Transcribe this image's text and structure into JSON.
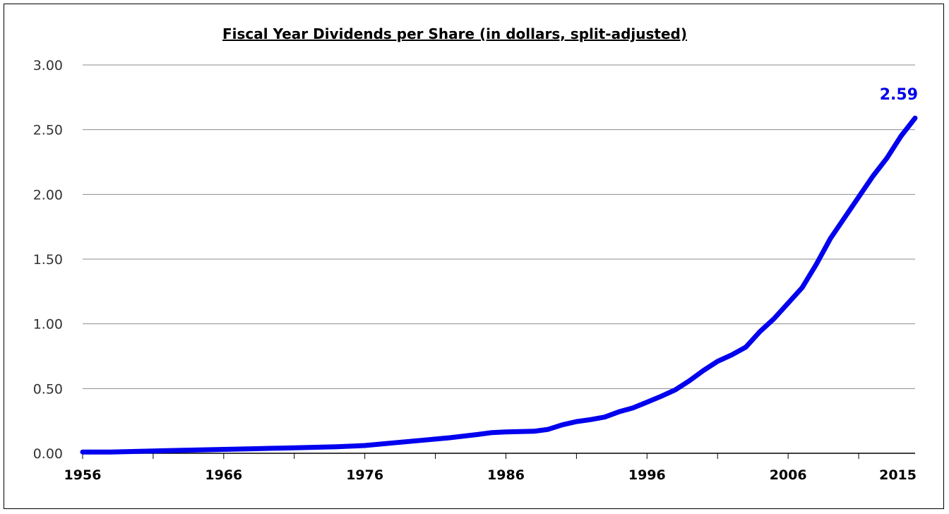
{
  "chart_data": {
    "type": "line",
    "title": "Fiscal Year Dividends per Share (in dollars, split-adjusted)",
    "xlabel": "",
    "ylabel": "",
    "xlim": [
      1956,
      2015
    ],
    "ylim": [
      0,
      3
    ],
    "y_ticks": [
      "0.00",
      "0.50",
      "1.00",
      "1.50",
      "2.00",
      "2.50",
      "3.00"
    ],
    "x_tick_labels": [
      {
        "year": 1956,
        "label": "1956"
      },
      {
        "year": 1966,
        "label": "1966"
      },
      {
        "year": 1976,
        "label": "1976"
      },
      {
        "year": 1986,
        "label": "1986"
      },
      {
        "year": 1996,
        "label": "1996"
      },
      {
        "year": 2006,
        "label": "2006"
      },
      {
        "year": 2015,
        "label": "2015"
      }
    ],
    "grid": true,
    "series": [
      {
        "name": "Dividends per Share",
        "color": "#0000ee",
        "x": [
          1956,
          1958,
          1960,
          1962,
          1964,
          1966,
          1968,
          1970,
          1972,
          1974,
          1976,
          1978,
          1980,
          1982,
          1984,
          1985,
          1986,
          1988,
          1989,
          1990,
          1991,
          1992,
          1993,
          1994,
          1995,
          1996,
          1997,
          1998,
          1999,
          2000,
          2001,
          2002,
          2003,
          2004,
          2005,
          2006,
          2007,
          2008,
          2009,
          2010,
          2011,
          2012,
          2013,
          2014,
          2015
        ],
        "values": [
          0.01,
          0.01,
          0.015,
          0.02,
          0.025,
          0.03,
          0.035,
          0.04,
          0.045,
          0.05,
          0.06,
          0.08,
          0.1,
          0.12,
          0.145,
          0.16,
          0.165,
          0.17,
          0.185,
          0.22,
          0.245,
          0.26,
          0.28,
          0.32,
          0.35,
          0.395,
          0.44,
          0.49,
          0.56,
          0.64,
          0.71,
          0.76,
          0.82,
          0.94,
          1.04,
          1.16,
          1.28,
          1.46,
          1.66,
          1.82,
          1.98,
          2.14,
          2.28,
          2.45,
          2.59
        ]
      }
    ],
    "annotations": [
      {
        "text": "2.59",
        "x": 2015,
        "y": 2.59,
        "color": "#0000ee"
      }
    ]
  }
}
